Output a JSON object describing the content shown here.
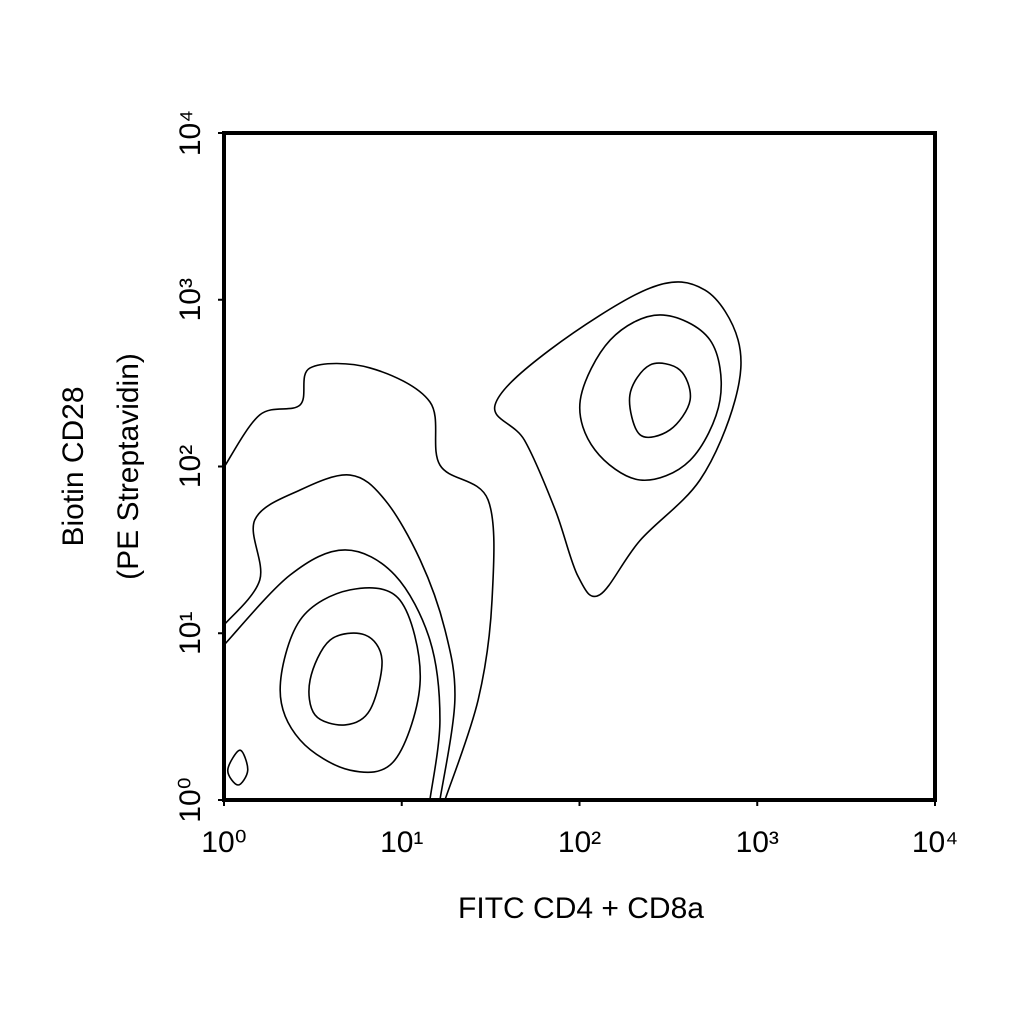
{
  "chart_data": {
    "type": "contour",
    "xlabel": "FITC CD4 + CD8a",
    "ylabel": [
      "Biotin CD28",
      "(PE Streptavidin)"
    ],
    "xscale": "log",
    "yscale": "log",
    "xlim": [
      1,
      10000
    ],
    "ylim": [
      1,
      10000
    ],
    "xticks": [
      {
        "value": 1,
        "label": "10⁰"
      },
      {
        "value": 10,
        "label": "10¹"
      },
      {
        "value": 100,
        "label": "10²"
      },
      {
        "value": 1000,
        "label": "10³"
      },
      {
        "value": 10000,
        "label": "10⁴"
      }
    ],
    "yticks": [
      {
        "value": 1,
        "label": "10⁰"
      },
      {
        "value": 10,
        "label": "10¹"
      },
      {
        "value": 100,
        "label": "10²"
      },
      {
        "value": 1000,
        "label": "10³"
      },
      {
        "value": 10000,
        "label": "10⁴"
      }
    ],
    "color": "#000000",
    "contours": [
      {
        "closed": true,
        "x": [
          33.5,
          68,
          249,
          508,
          780,
          750,
          476,
          219,
          130,
          98,
          73,
          49
        ],
        "y": [
          234,
          500,
          1175,
          1143,
          574,
          250,
          83,
          36,
          17,
          22,
          55,
          144
        ]
      },
      {
        "closed": true,
        "x": [
          101,
          149,
          284,
          542,
          617,
          419,
          219,
          122
        ],
        "y": [
          250,
          574,
          811,
          574,
          250,
          109,
          83,
          126
        ]
      },
      {
        "closed": true,
        "x": [
          192,
          249,
          367,
          419,
          323,
          219
        ],
        "y": [
          268,
          406,
          379,
          250,
          166,
          155
        ]
      },
      {
        "closed": false,
        "x": [
          1,
          1.59,
          2.68,
          3.05,
          6.63,
          14.4,
          16.4,
          30.6,
          32.2,
          26.9,
          17.5
        ],
        "y": [
          99,
          204,
          234,
          390,
          390,
          244,
          102,
          63,
          15.8,
          3.98,
          1
        ]
      },
      {
        "closed": false,
        "x": [
          1,
          1.59,
          1.49,
          2.68,
          5.12,
          8.05,
          12.7,
          17.5,
          19.9,
          16.4
        ],
        "y": [
          11.2,
          20.9,
          47.8,
          72.3,
          88.9,
          63,
          27.5,
          10.5,
          3.98,
          1
        ]
      },
      {
        "closed": false,
        "x": [
          1,
          2.35,
          4.8,
          9.16,
          14.4,
          16.4,
          14.4
        ],
        "y": [
          8.5,
          22.3,
          31.6,
          22.3,
          9.1,
          3.02,
          1
        ]
      },
      {
        "closed": true,
        "x": [
          2.07,
          2.68,
          5.12,
          9.77,
          12.7,
          9.16,
          5.12,
          2.68
        ],
        "y": [
          4.57,
          12.0,
          18.2,
          15.8,
          5.25,
          1.74,
          1.51,
          2.29
        ]
      },
      {
        "closed": true,
        "x": [
          3.05,
          3.95,
          6.21,
          7.74,
          6.63,
          4.8,
          3.25
        ],
        "y": [
          5.25,
          9.1,
          9.77,
          6.91,
          3.47,
          2.82,
          3.24
        ]
      },
      {
        "closed": true,
        "x": [
          1.05,
          1.23,
          1.36,
          1.2
        ],
        "y": [
          1.51,
          1.99,
          1.51,
          1.23
        ]
      }
    ]
  }
}
